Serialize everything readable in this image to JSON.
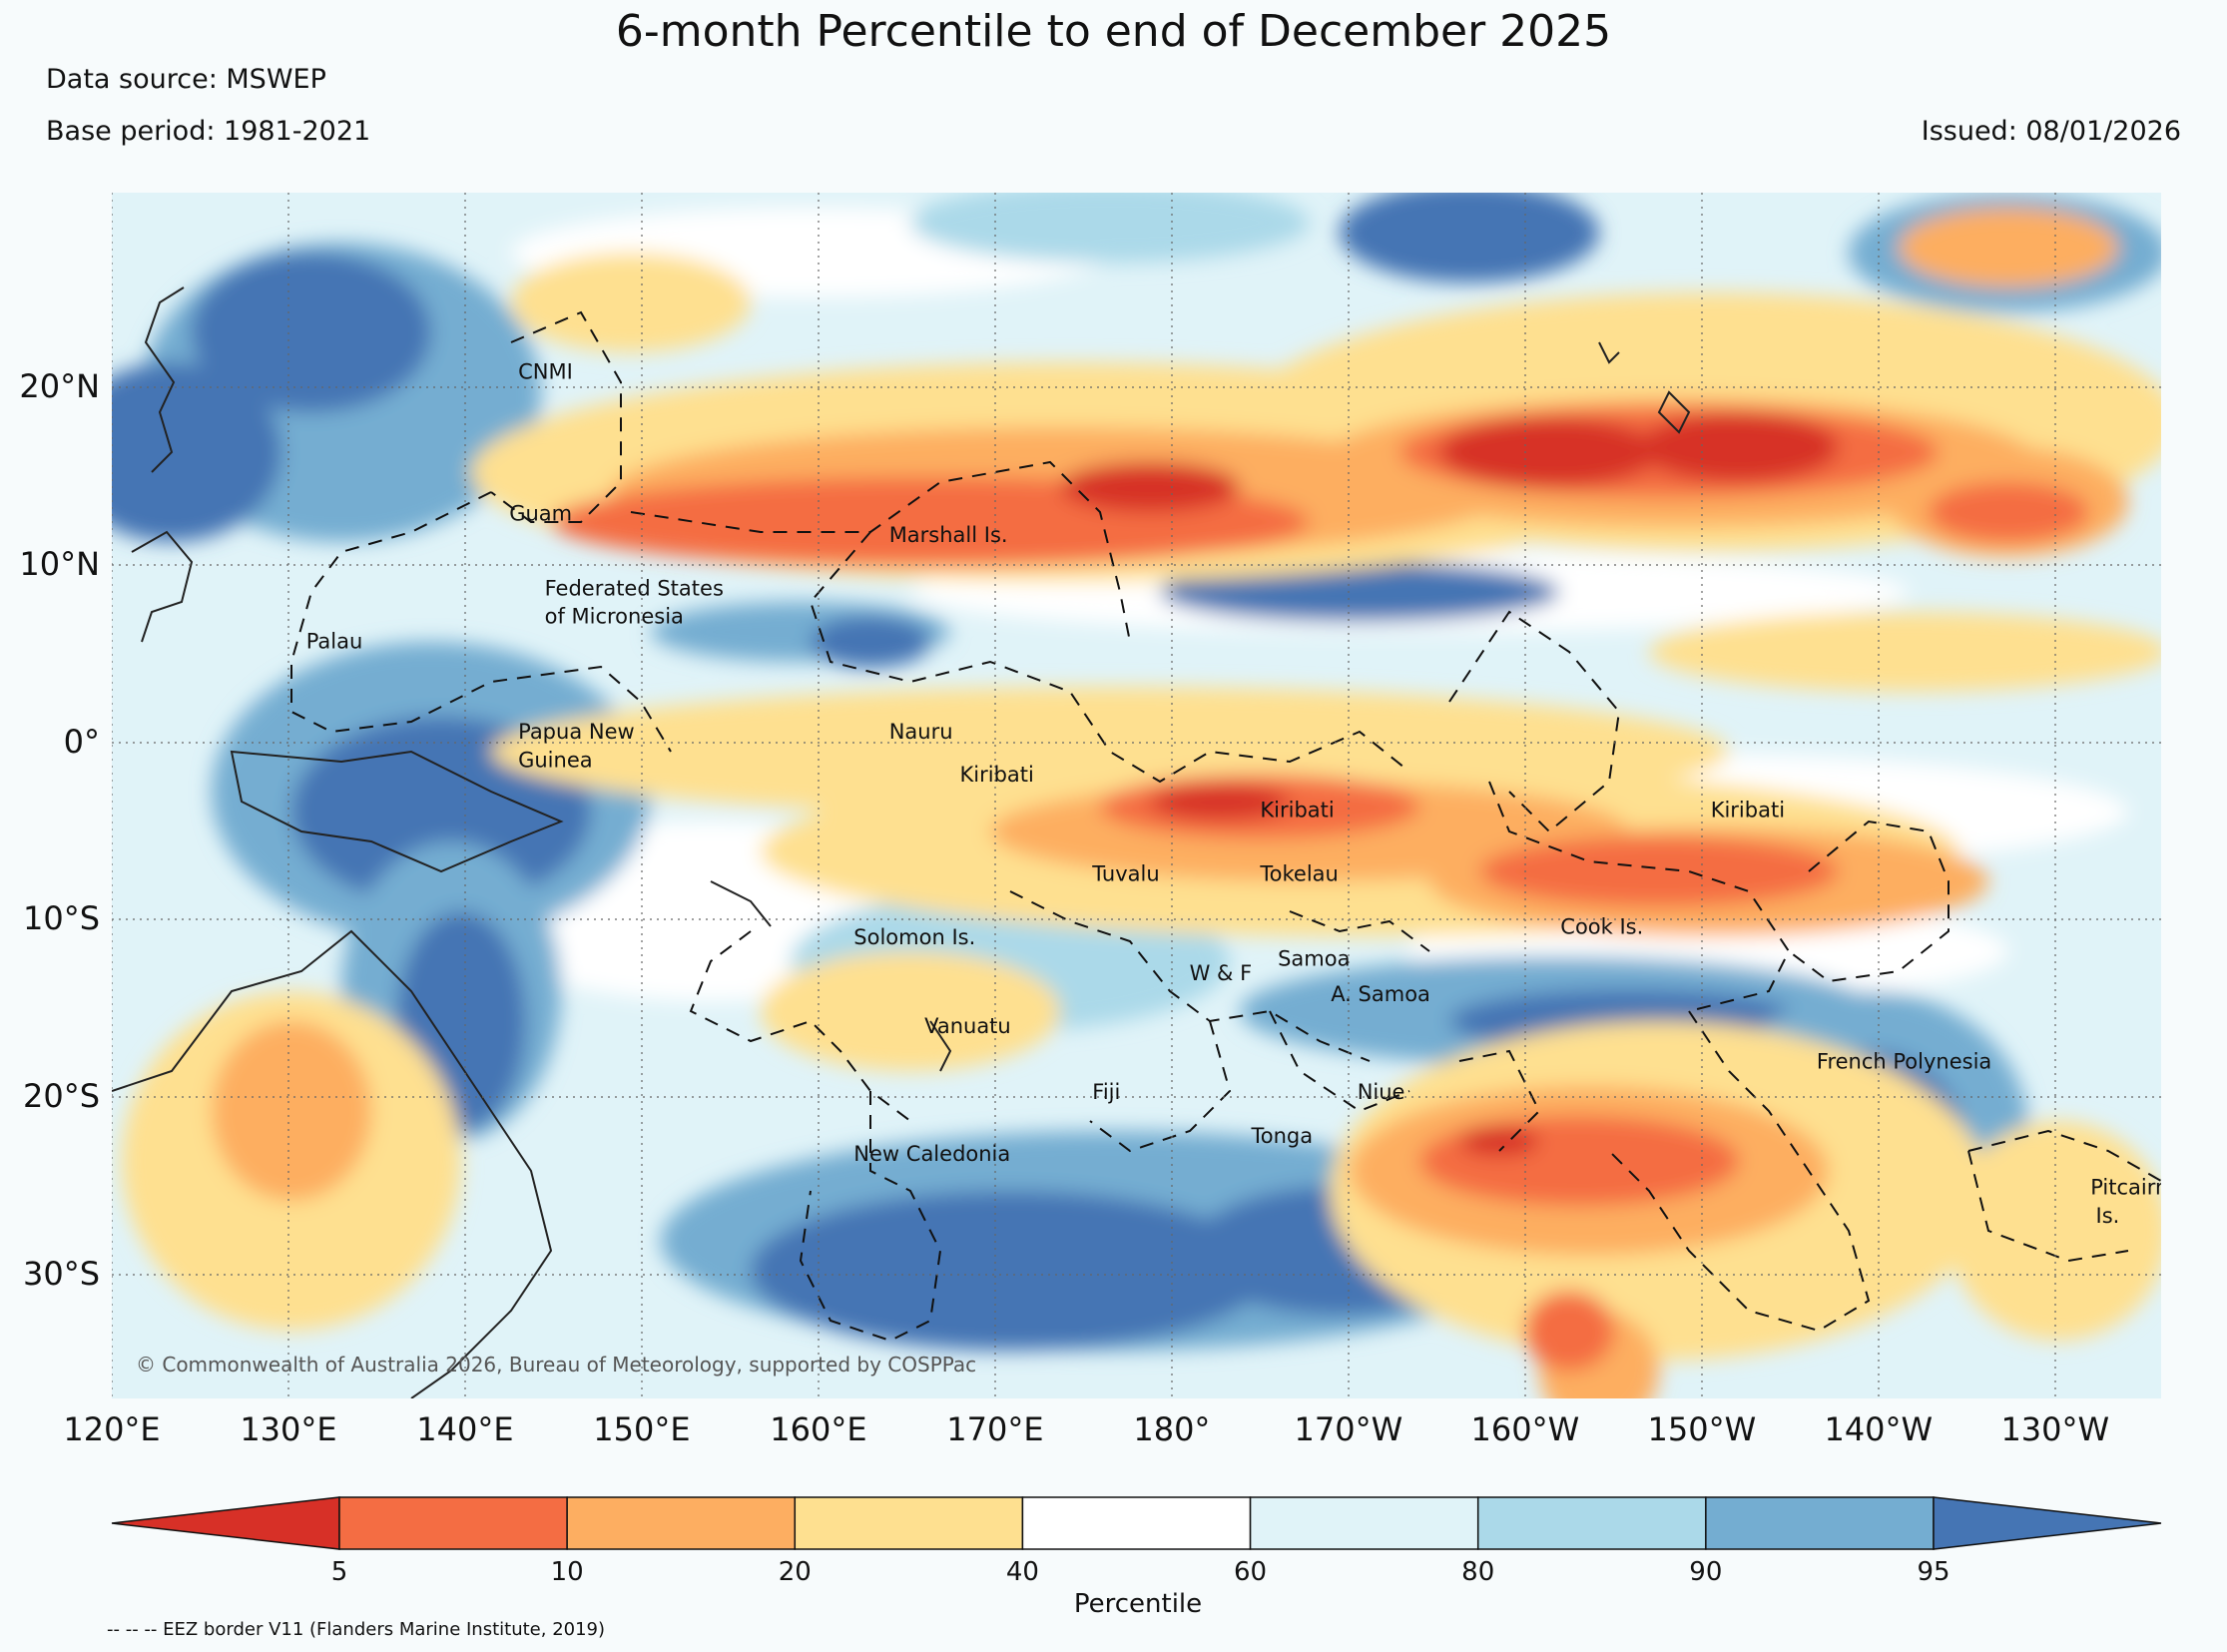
{
  "title": "6-month Percentile to end of December 2025",
  "data_source": "Data source: MSWEP",
  "base_period": "Base period: 1981-2021",
  "issued": "Issued: 08/01/2026",
  "copyright": "© Commonwealth of Australia 2026, Bureau of Meteorology, supported by COSPPac",
  "footer_note": "-- -- -- EEZ border V11 (Flanders Marine Institute, 2019)",
  "colorbar": {
    "label": "Percentile",
    "ticks": [
      "5",
      "10",
      "20",
      "40",
      "60",
      "80",
      "90",
      "95"
    ],
    "colors": [
      "#d73027",
      "#f46d43",
      "#fdae61",
      "#fee090",
      "#ffffff",
      "#e0f3f8",
      "#abd9e9",
      "#74add1",
      "#4575b4"
    ]
  },
  "axes": {
    "lon_ticks": [
      "120°E",
      "130°E",
      "140°E",
      "150°E",
      "160°E",
      "170°E",
      "180°",
      "170°W",
      "160°W",
      "150°W",
      "140°W",
      "130°W"
    ],
    "lat_ticks": [
      "20°N",
      "10°N",
      "0°",
      "10°S",
      "20°S",
      "30°S"
    ],
    "lon_values": [
      120,
      130,
      140,
      150,
      160,
      170,
      180,
      190,
      200,
      210,
      220,
      230
    ],
    "lat_values": [
      20,
      10,
      0,
      -10,
      -20,
      -30
    ],
    "lon_range": [
      120,
      236
    ],
    "lat_range": [
      -37,
      31
    ]
  },
  "regions": [
    {
      "name": "CNMI",
      "lon": 143,
      "lat": 20.5
    },
    {
      "name": "Guam",
      "lon": 142.5,
      "lat": 12.5
    },
    {
      "name": "Marshall Is.",
      "lon": 164,
      "lat": 11.3
    },
    {
      "name": "Federated States",
      "lon": 144.5,
      "lat": 8.3
    },
    {
      "name": "of Micronesia",
      "lon": 144.5,
      "lat": 6.7
    },
    {
      "name": "Palau",
      "lon": 131,
      "lat": 5.3
    },
    {
      "name": "Papua New",
      "lon": 143,
      "lat": 0.2
    },
    {
      "name": "Guinea",
      "lon": 143,
      "lat": -1.4
    },
    {
      "name": "Nauru",
      "lon": 164,
      "lat": 0.2
    },
    {
      "name": "Kiribati",
      "lon": 168,
      "lat": -2.2
    },
    {
      "name": "Kiribati",
      "lon": 185,
      "lat": -4.2
    },
    {
      "name": "Kiribati",
      "lon": 210.5,
      "lat": -4.2
    },
    {
      "name": "Tuvalu",
      "lon": 175.5,
      "lat": -7.8
    },
    {
      "name": "Tokelau",
      "lon": 185,
      "lat": -7.8
    },
    {
      "name": "Cook Is.",
      "lon": 202,
      "lat": -10.8
    },
    {
      "name": "Solomon Is.",
      "lon": 162,
      "lat": -11.4
    },
    {
      "name": "Samoa",
      "lon": 186,
      "lat": -12.6
    },
    {
      "name": "W & F",
      "lon": 181,
      "lat": -13.4
    },
    {
      "name": "A. Samoa",
      "lon": 189,
      "lat": -14.6
    },
    {
      "name": "Vanuatu",
      "lon": 166,
      "lat": -16.4
    },
    {
      "name": "French Polynesia",
      "lon": 216.5,
      "lat": -18.4
    },
    {
      "name": "Fiji",
      "lon": 175.5,
      "lat": -20.1
    },
    {
      "name": "Niue",
      "lon": 190.5,
      "lat": -20.1
    },
    {
      "name": "Tonga",
      "lon": 184.5,
      "lat": -22.6
    },
    {
      "name": "New Caledonia",
      "lon": 162,
      "lat": -23.6
    },
    {
      "name": "Pitcairn",
      "lon": 232,
      "lat": -25.5
    },
    {
      "name": "Is.",
      "lon": 232.3,
      "lat": -27.1
    }
  ]
}
